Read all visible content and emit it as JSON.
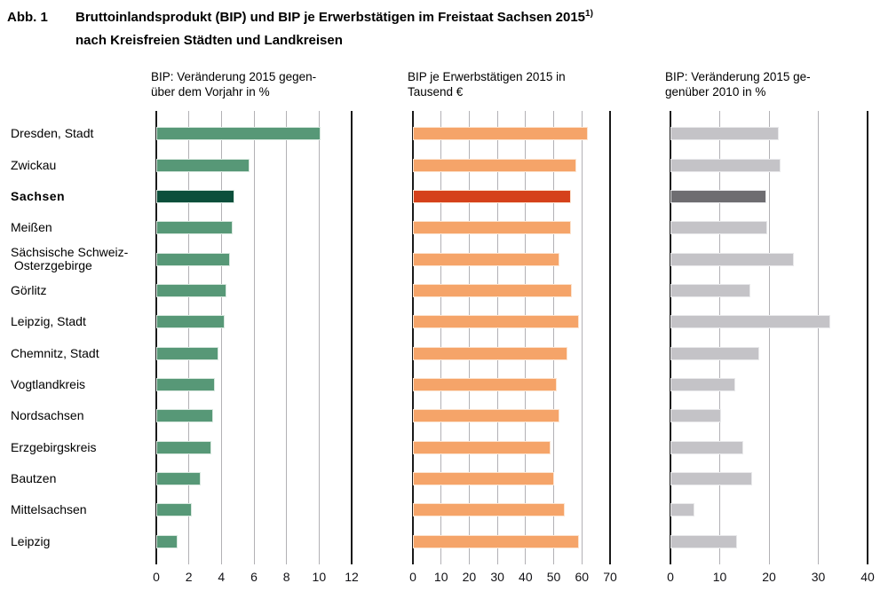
{
  "figure": {
    "label": "Abb. 1",
    "title_line1": "Bruttoinlandsprodukt (BIP) und BIP je Erwerbstätigen im Freistaat Sachsen 2015",
    "footnote_marker": "1)",
    "title_line2": "nach Kreisfreien Städten und Landkreisen"
  },
  "chart_data": {
    "type": "bar",
    "orientation": "horizontal",
    "grid": true,
    "gridline_color": "#b2b1b5",
    "axis_color": "#1a1a1a",
    "categories": [
      "Dresden, Stadt",
      "Zwickau",
      "Sachsen",
      "Meißen",
      "Sächsische Schweiz-\n Osterzgebirge",
      "Görlitz",
      "Leipzig, Stadt",
      "Chemnitz, Stadt",
      "Vogtlandkreis",
      "Nordsachsen",
      "Erzgebirgskreis",
      "Bautzen",
      "Mittelsachsen",
      "Leipzig"
    ],
    "highlight_index": 2,
    "highlight_category": "Sachsen",
    "panels": [
      {
        "title": "BIP:  Veränderung 2015 gegen-\nüber dem Vorjahr in %",
        "xlabel_unit": "%",
        "xlim": [
          0,
          12
        ],
        "ticks": [
          0,
          2,
          4,
          6,
          8,
          10,
          12
        ],
        "values": [
          10.1,
          5.7,
          4.8,
          4.7,
          4.5,
          4.3,
          4.2,
          3.8,
          3.6,
          3.5,
          3.4,
          2.7,
          2.2,
          1.3
        ],
        "bar_color": "#579877",
        "bar_border": "#d8e8df",
        "highlight_color": "#0c4f3b"
      },
      {
        "title": "BIP je Erwerbstätigen 2015 in\nTausend €",
        "xlabel_unit": "Tausend €",
        "xlim": [
          0,
          70
        ],
        "ticks": [
          0,
          10,
          20,
          30,
          40,
          50,
          60,
          70
        ],
        "values": [
          62,
          58,
          56,
          56,
          52,
          56.5,
          59,
          55,
          51,
          52,
          49,
          50,
          54,
          59
        ],
        "bar_color": "#f5a469",
        "bar_border": "#fce4d0",
        "highlight_color": "#d5411b"
      },
      {
        "title": "BIP:  Veränderung 2015 ge-\ngenüber 2010 in %",
        "xlabel_unit": "%",
        "xlim": [
          0,
          40
        ],
        "ticks": [
          0,
          10,
          20,
          30,
          40
        ],
        "values": [
          22,
          22.4,
          19.5,
          19.7,
          25,
          16.3,
          32.4,
          18,
          13.1,
          10.2,
          14.7,
          16.6,
          4.8,
          13.5
        ],
        "bar_color": "#c4c3c7",
        "bar_border": "#e9e9eb",
        "highlight_color": "#6e6d71"
      }
    ]
  }
}
